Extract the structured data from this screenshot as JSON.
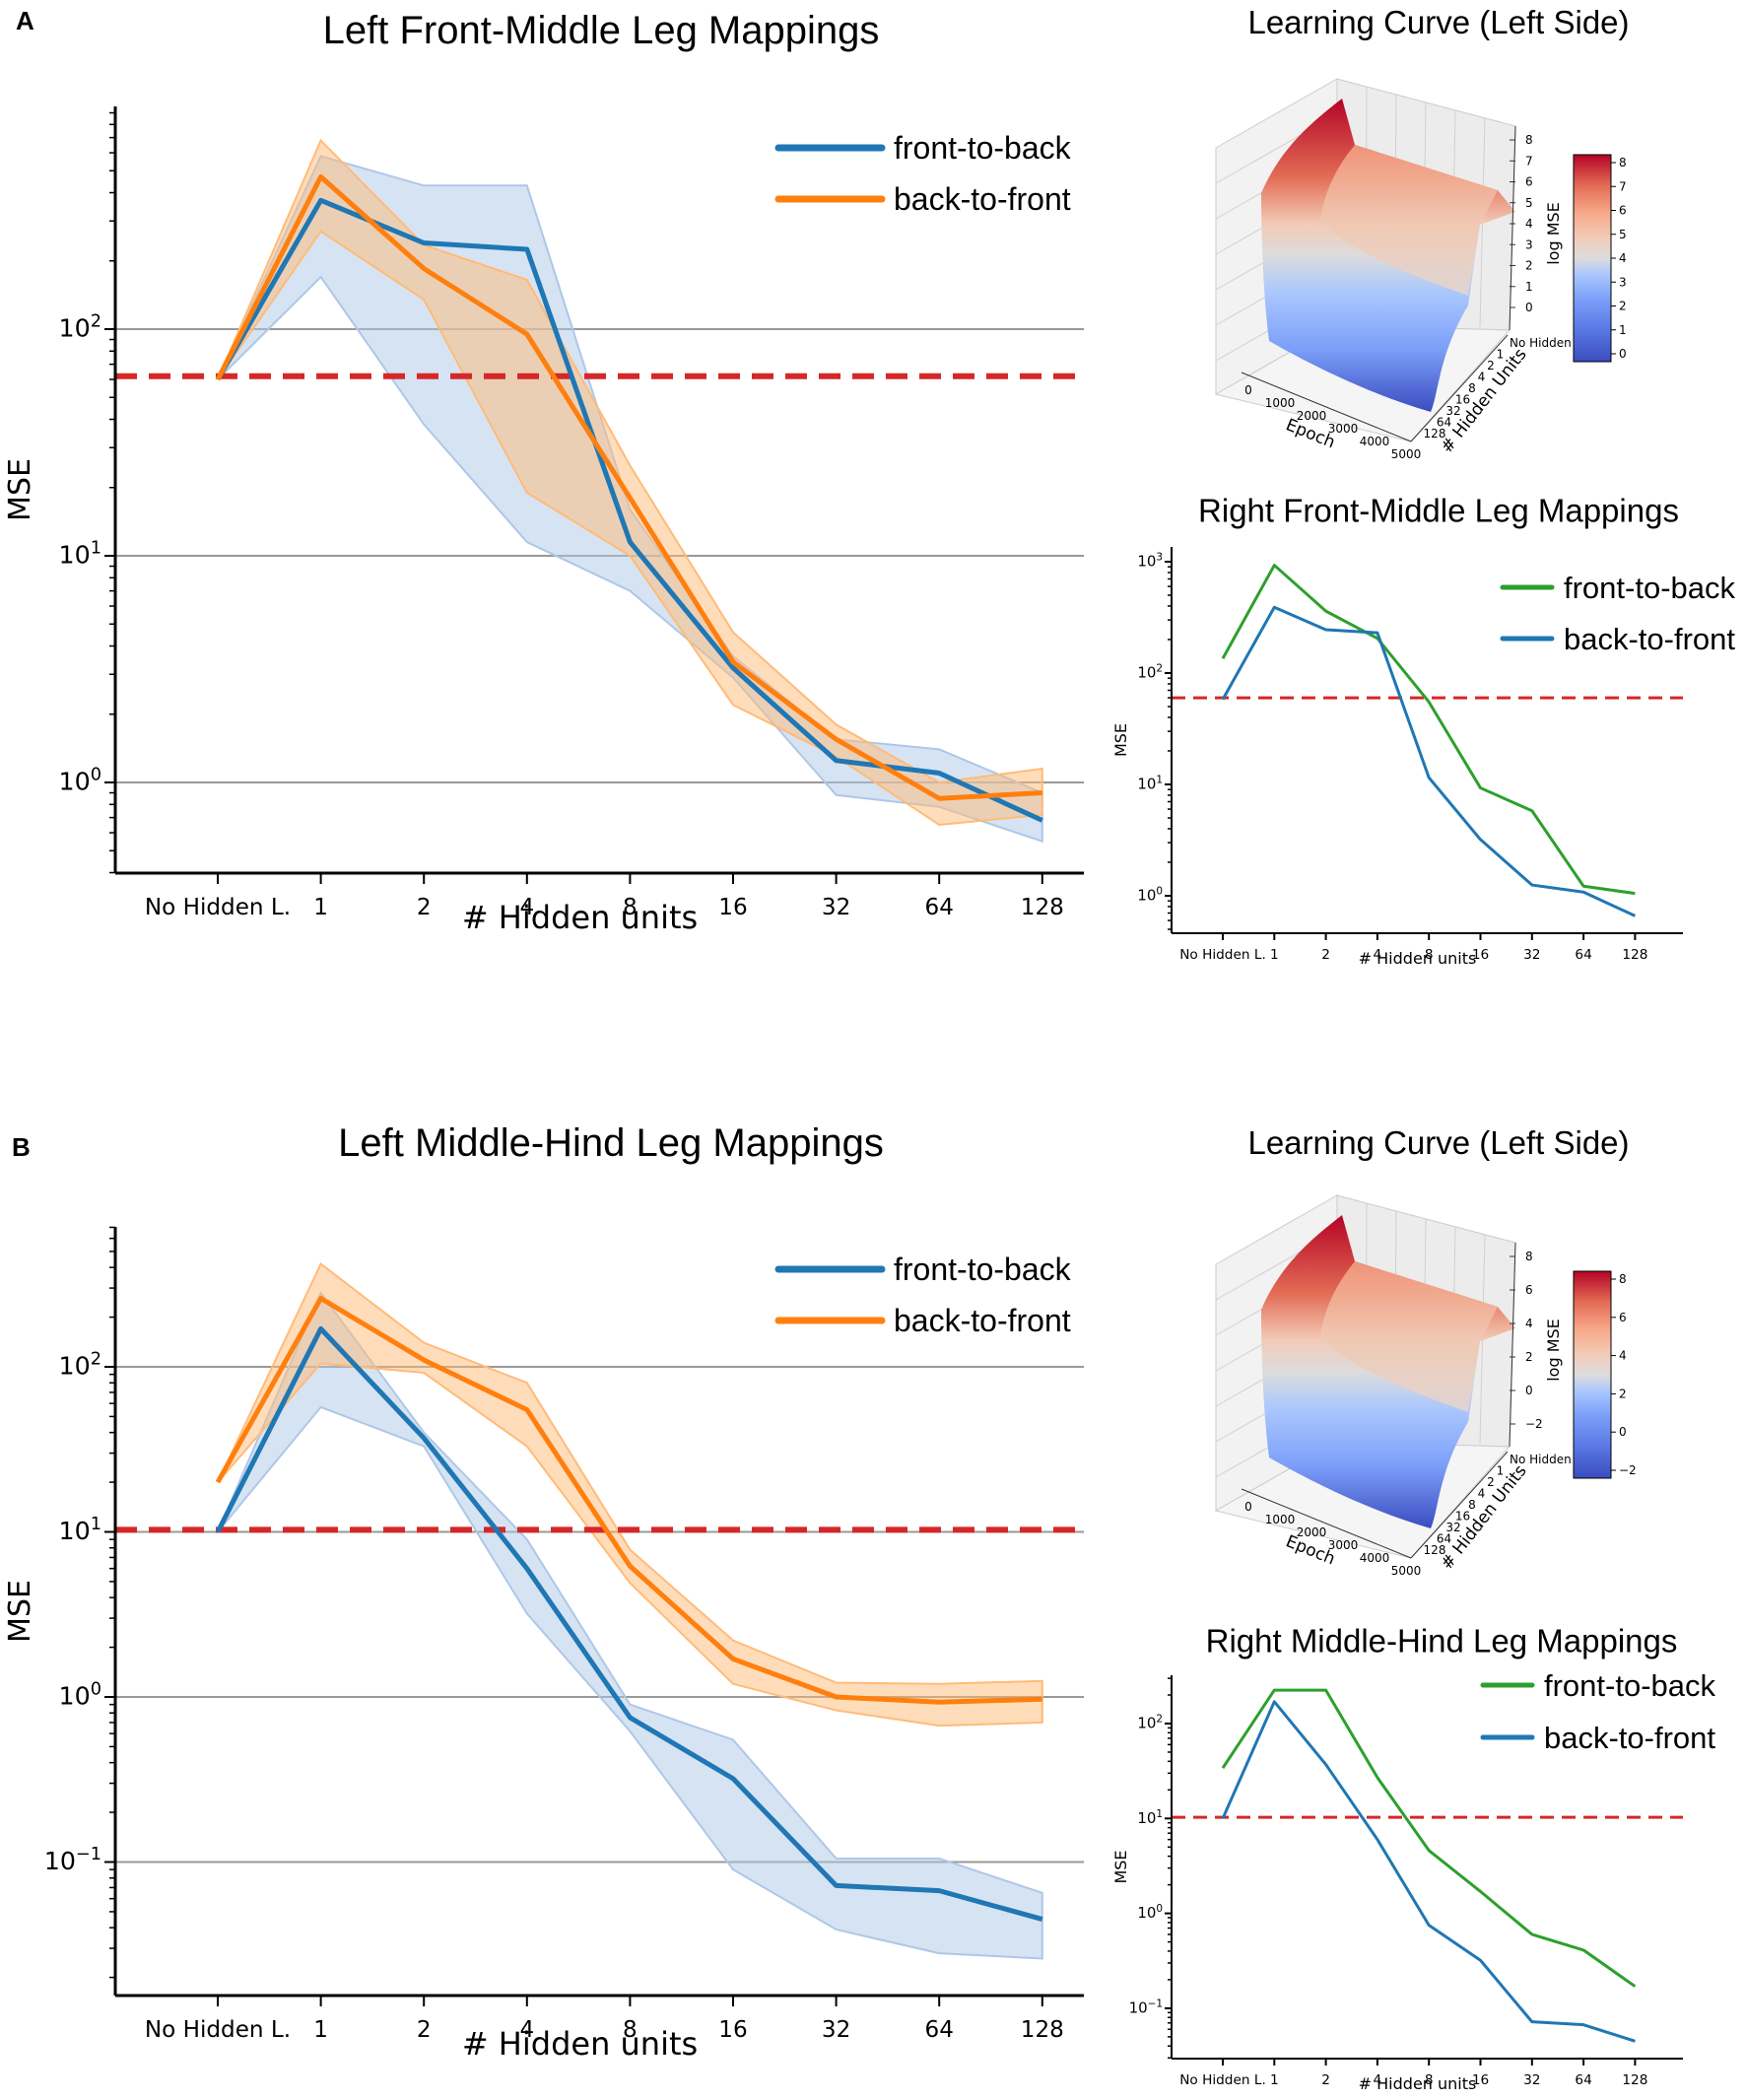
{
  "figure": {
    "panel_labels": [
      "A",
      "B"
    ]
  },
  "chart_data": [
    {
      "id": "A-main",
      "type": "line",
      "title": "Left Front-Middle Leg Mappings",
      "xlabel": "# Hidden units",
      "ylabel": "MSE",
      "yscale": "log",
      "ylim": [
        0.39,
        950
      ],
      "ytick_labels": [
        "10^0",
        "10^1",
        "10^2"
      ],
      "ytick_values": [
        1,
        10,
        100
      ],
      "grid": "horizontal major lines at 10^0 and 10^1",
      "categories": [
        "No Hidden L.",
        "1",
        "2",
        "4",
        "8",
        "16",
        "32",
        "64",
        "128"
      ],
      "legend_position": "top-right",
      "reference_line": {
        "value": 62,
        "style": "dashed",
        "color": "#d62728"
      },
      "series": [
        {
          "name": "front-to-back",
          "color": "#1f77b4",
          "values": [
            60,
            370,
            240,
            225,
            11.5,
            3.2,
            1.25,
            1.1,
            0.68
          ],
          "lower": [
            60,
            170,
            38,
            11.5,
            7,
            2.9,
            0.88,
            0.78,
            0.55
          ],
          "upper": [
            60,
            580,
            430,
            430,
            16,
            3.6,
            1.55,
            1.4,
            0.9
          ]
        },
        {
          "name": "back-to-front",
          "color": "#ff7f0e",
          "values": [
            60,
            470,
            185,
            95,
            18,
            3.4,
            1.55,
            0.85,
            0.9
          ],
          "lower": [
            60,
            270,
            135,
            19,
            10,
            2.2,
            1.3,
            0.65,
            0.72
          ],
          "upper": [
            60,
            680,
            235,
            165,
            25,
            4.6,
            1.8,
            1.0,
            1.15
          ]
        }
      ]
    },
    {
      "id": "A-surface",
      "type": "surface3d",
      "title": "Learning Curve (Left Side)",
      "xlabel": "Epoch",
      "ylabel": "# Hidden Units",
      "zlabel": "log MSE",
      "x_ticks": [
        "0",
        "1000",
        "2000",
        "3000",
        "4000",
        "5000"
      ],
      "y_ticks": [
        "No Hidden",
        "1",
        "2",
        "4",
        "8",
        "16",
        "32",
        "64",
        "128"
      ],
      "z_ticks": [
        "0",
        "1",
        "2",
        "3",
        "4",
        "5",
        "6",
        "7",
        "8"
      ],
      "colorbar_ticks": [
        "0",
        "1",
        "2",
        "3",
        "4",
        "5",
        "6",
        "7",
        "8"
      ],
      "colormap": "coolwarm",
      "zlim": [
        -0.4,
        8.1
      ]
    },
    {
      "id": "A-right",
      "type": "line",
      "title": "Right Front-Middle Leg Mappings",
      "xlabel": "# Hidden units",
      "ylabel": "MSE",
      "yscale": "log",
      "ylim": [
        0.45,
        1300
      ],
      "ytick_labels": [
        "10^0",
        "10^1",
        "10^2",
        "10^3"
      ],
      "ytick_values": [
        1,
        10,
        100,
        1000
      ],
      "categories": [
        "No Hidden L.",
        "1",
        "2",
        "4",
        "8",
        "16",
        "32",
        "64",
        "128"
      ],
      "legend_position": "top-right",
      "reference_line": {
        "value": 60,
        "style": "dashed",
        "color": "#d62728"
      },
      "series": [
        {
          "name": "front-to-back",
          "color": "#2ca02c",
          "values": [
            135,
            930,
            360,
            205,
            55,
            9.3,
            5.8,
            1.22,
            1.05
          ]
        },
        {
          "name": "back-to-front",
          "color": "#1f77b4",
          "values": [
            58,
            390,
            245,
            230,
            11.5,
            3.2,
            1.25,
            1.08,
            0.66
          ]
        }
      ]
    },
    {
      "id": "B-main",
      "type": "line",
      "title": "Left Middle-Hind Leg Mappings",
      "xlabel": "# Hidden units",
      "ylabel": "MSE",
      "yscale": "log",
      "ylim": [
        0.018,
        850
      ],
      "ytick_labels": [
        "10^-1",
        "10^0",
        "10^1",
        "10^2"
      ],
      "ytick_values": [
        0.1,
        1,
        10,
        100
      ],
      "grid": "horizontal major lines at 10^-1, 10^0, 10^2",
      "categories": [
        "No Hidden L.",
        "1",
        "2",
        "4",
        "8",
        "16",
        "32",
        "64",
        "128"
      ],
      "legend_position": "top-right",
      "reference_line": {
        "value": 10.3,
        "style": "dashed",
        "color": "#d62728"
      },
      "series": [
        {
          "name": "front-to-back",
          "color": "#1f77b4",
          "values": [
            10,
            170,
            37,
            6,
            0.75,
            0.32,
            0.072,
            0.067,
            0.045
          ],
          "lower": [
            10,
            57,
            33,
            3.2,
            0.62,
            0.09,
            0.039,
            0.028,
            0.026
          ],
          "upper": [
            10,
            280,
            40,
            9,
            0.9,
            0.55,
            0.105,
            0.105,
            0.065
          ]
        },
        {
          "name": "back-to-front",
          "color": "#ff7f0e",
          "values": [
            20,
            260,
            110,
            55,
            6.2,
            1.7,
            1.0,
            0.93,
            0.97
          ],
          "lower": [
            20,
            105,
            92,
            33,
            4.9,
            1.2,
            0.83,
            0.67,
            0.7
          ],
          "upper": [
            20,
            420,
            140,
            80,
            7.8,
            2.2,
            1.22,
            1.2,
            1.25
          ]
        }
      ]
    },
    {
      "id": "B-surface",
      "type": "surface3d",
      "title": "Learning Curve (Left Side)",
      "xlabel": "Epoch",
      "ylabel": "# Hidden Units",
      "zlabel": "log MSE",
      "x_ticks": [
        "0",
        "1000",
        "2000",
        "3000",
        "4000",
        "5000"
      ],
      "y_ticks": [
        "No Hidden",
        "1",
        "2",
        "4",
        "8",
        "16",
        "32",
        "64",
        "128"
      ],
      "z_ticks": [
        "−2",
        "0",
        "2",
        "4",
        "6",
        "8"
      ],
      "colorbar_ticks": [
        "−2",
        "0",
        "2",
        "4",
        "6",
        "8"
      ],
      "colormap": "coolwarm",
      "zlim": [
        -3.3,
        8.6
      ]
    },
    {
      "id": "B-right",
      "type": "line",
      "title": "Right Middle-Hind Leg Mappings",
      "xlabel": "# Hidden units",
      "ylabel": "MSE",
      "yscale": "log",
      "ylim": [
        0.03,
        330
      ],
      "ytick_labels": [
        "10^-1",
        "10^0",
        "10^1",
        "10^2"
      ],
      "ytick_values": [
        0.1,
        1,
        10,
        100
      ],
      "categories": [
        "No Hidden L.",
        "1",
        "2",
        "4",
        "8",
        "16",
        "32",
        "64",
        "128"
      ],
      "legend_position": "top-right",
      "reference_line": {
        "value": 10.3,
        "style": "dashed",
        "color": "#d62728"
      },
      "series": [
        {
          "name": "front-to-back",
          "color": "#2ca02c",
          "values": [
            34,
            225,
            225,
            27,
            4.6,
            1.7,
            0.6,
            0.41,
            0.17
          ]
        },
        {
          "name": "back-to-front",
          "color": "#1f77b4",
          "values": [
            10,
            170,
            37,
            6,
            0.75,
            0.32,
            0.072,
            0.067,
            0.045
          ]
        }
      ]
    }
  ]
}
